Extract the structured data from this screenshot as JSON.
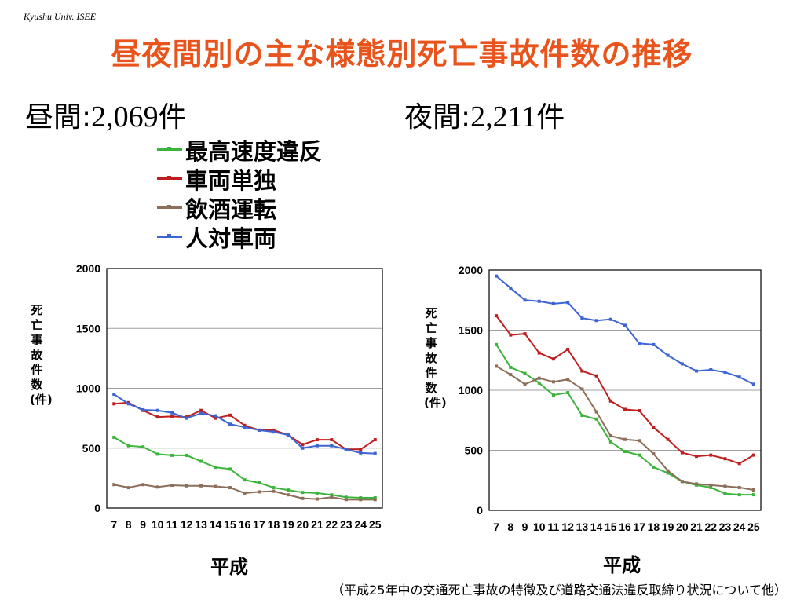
{
  "header": {
    "source_label": "Kyushu Univ. ISEE",
    "title": "昼夜間別の主な様態別死亡事故件数の推移"
  },
  "day_total": {
    "label": "昼間",
    "separator": ":",
    "value": "2,069",
    "unit": "件"
  },
  "night_total": {
    "label": "夜間",
    "separator": ":",
    "value": "2,211",
    "unit": "件"
  },
  "legend": [
    {
      "label": "最高速度違反",
      "color": "#3cb43c"
    },
    {
      "label": "車両単独",
      "color": "#c01e1e"
    },
    {
      "label": "飲酒運転",
      "color": "#8c6e5a"
    },
    {
      "label": "人対車両",
      "color": "#3c64d2"
    }
  ],
  "axis_text": {
    "ylabel": "死亡事故件数(件)",
    "xlabel": "平成"
  },
  "footnote": "（平成25年中の交通死亡事故の特徴及び道路交通法違反取締り状況について他）",
  "chart_data": [
    {
      "type": "line",
      "title": "",
      "xlabel": "平成",
      "ylabel": "死亡事故件数(件)",
      "ylim": [
        0,
        2000
      ],
      "yticks": [
        0,
        500,
        1000,
        1500,
        2000
      ],
      "grid": true,
      "categories": [
        "7",
        "8",
        "9",
        "10",
        "11",
        "12",
        "13",
        "14",
        "15",
        "16",
        "17",
        "18",
        "19",
        "20",
        "21",
        "22",
        "23",
        "24",
        "25"
      ],
      "series": [
        {
          "name": "最高速度違反",
          "color": "#3cb43c",
          "values": [
            590,
            520,
            510,
            450,
            440,
            440,
            390,
            340,
            325,
            235,
            210,
            170,
            150,
            130,
            125,
            110,
            90,
            85,
            85
          ]
        },
        {
          "name": "車両単独",
          "color": "#c01e1e",
          "values": [
            870,
            880,
            815,
            760,
            765,
            760,
            815,
            750,
            775,
            690,
            650,
            650,
            610,
            530,
            570,
            570,
            490,
            490,
            570
          ]
        },
        {
          "name": "飲酒運転",
          "color": "#8c6e5a",
          "values": [
            195,
            170,
            195,
            175,
            190,
            185,
            185,
            180,
            170,
            125,
            135,
            140,
            110,
            80,
            75,
            90,
            70,
            70,
            70
          ]
        },
        {
          "name": "人対車両",
          "color": "#3c64d2",
          "values": [
            950,
            870,
            820,
            815,
            795,
            750,
            790,
            770,
            700,
            675,
            650,
            635,
            610,
            500,
            520,
            520,
            490,
            460,
            455
          ]
        }
      ]
    },
    {
      "type": "line",
      "title": "",
      "xlabel": "平成",
      "ylabel": "死亡事故件数(件)",
      "ylim": [
        0,
        2000
      ],
      "yticks": [
        0,
        500,
        1000,
        1500,
        2000
      ],
      "grid": true,
      "categories": [
        "7",
        "8",
        "9",
        "10",
        "11",
        "12",
        "13",
        "14",
        "15",
        "16",
        "17",
        "18",
        "19",
        "20",
        "21",
        "22",
        "23",
        "24",
        "25"
      ],
      "series": [
        {
          "name": "最高速度違反",
          "color": "#3cb43c",
          "values": [
            1380,
            1190,
            1140,
            1060,
            960,
            980,
            790,
            760,
            570,
            490,
            460,
            360,
            310,
            240,
            210,
            190,
            140,
            130,
            130
          ]
        },
        {
          "name": "車両単独",
          "color": "#c01e1e",
          "values": [
            1620,
            1460,
            1470,
            1310,
            1260,
            1340,
            1160,
            1120,
            910,
            840,
            830,
            690,
            590,
            480,
            450,
            460,
            430,
            390,
            460
          ]
        },
        {
          "name": "飲酒運転",
          "color": "#8c6e5a",
          "values": [
            1200,
            1130,
            1050,
            1100,
            1070,
            1090,
            1010,
            820,
            620,
            590,
            580,
            470,
            330,
            240,
            220,
            210,
            200,
            190,
            170
          ]
        },
        {
          "name": "人対車両",
          "color": "#3c64d2",
          "values": [
            1950,
            1850,
            1750,
            1740,
            1720,
            1730,
            1600,
            1580,
            1590,
            1540,
            1390,
            1380,
            1290,
            1220,
            1160,
            1170,
            1150,
            1110,
            1050
          ]
        }
      ]
    }
  ]
}
